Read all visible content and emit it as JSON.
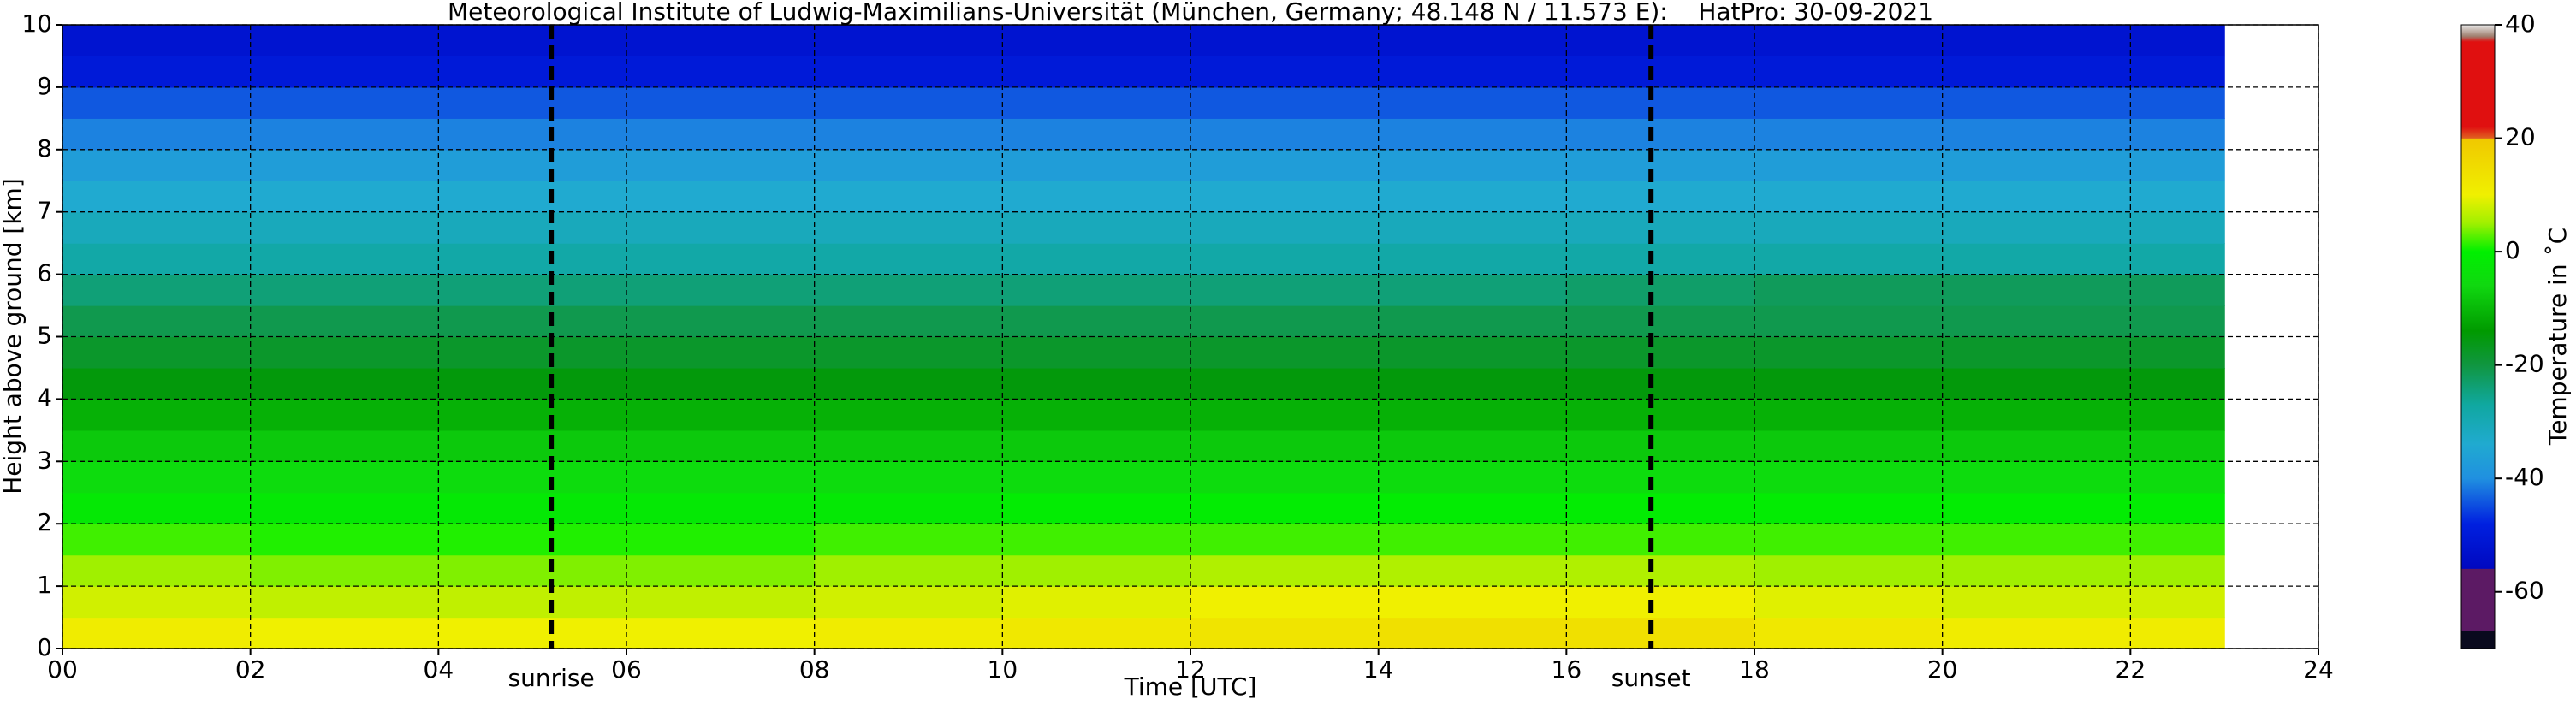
{
  "chart_data": {
    "type": "heatmap",
    "title": "Meteorological Institute of Ludwig-Maximilians-Universität (München, Germany; 48.148 N / 11.573 E):    HatPro: 30-09-2021",
    "xlabel": "Time [UTC]",
    "ylabel": "Height above ground [km]",
    "colorbar_label": "Temperature in ˚C",
    "xlim": [
      0,
      24
    ],
    "ylim": [
      0,
      10
    ],
    "xticks": [
      {
        "value": 0,
        "label": "00"
      },
      {
        "value": 2,
        "label": "02"
      },
      {
        "value": 4,
        "label": "04"
      },
      {
        "value": 6,
        "label": "06"
      },
      {
        "value": 8,
        "label": "08"
      },
      10,
      12,
      14,
      16,
      18,
      20,
      22,
      24
    ],
    "yticks": [
      0,
      1,
      2,
      3,
      4,
      5,
      6,
      7,
      8,
      9,
      10
    ],
    "grid": true,
    "clim": [
      -70,
      40
    ],
    "cticks": [
      -60,
      -40,
      -20,
      0,
      20,
      40
    ],
    "colormap": [
      {
        "value": -70,
        "color": "#0a0a1e"
      },
      {
        "value": -67,
        "color": "#0a0a1e"
      },
      {
        "value": -66.9,
        "color": "#5c1a64"
      },
      {
        "value": -56,
        "color": "#5c1a64"
      },
      {
        "value": -55.9,
        "color": "#0008c0"
      },
      {
        "value": -48,
        "color": "#0020e0"
      },
      {
        "value": -40,
        "color": "#2090e0"
      },
      {
        "value": -34,
        "color": "#20aad0"
      },
      {
        "value": -27,
        "color": "#10a8a0"
      },
      {
        "value": -20,
        "color": "#109640"
      },
      {
        "value": -14,
        "color": "#009a00"
      },
      {
        "value": -6,
        "color": "#10d810"
      },
      {
        "value": 0,
        "color": "#00f000"
      },
      {
        "value": 5,
        "color": "#a0f000"
      },
      {
        "value": 10,
        "color": "#f0f000"
      },
      {
        "value": 19.9,
        "color": "#f0c800"
      },
      {
        "value": 20,
        "color": "#e06020"
      },
      {
        "value": 22,
        "color": "#e01010"
      },
      {
        "value": 37,
        "color": "#e01010"
      },
      {
        "value": 38,
        "color": "#a08070"
      },
      {
        "value": 40,
        "color": "#e8e8e8"
      }
    ],
    "x_bins": [
      0,
      2,
      4,
      6,
      8,
      10,
      12,
      14,
      16,
      18,
      20,
      22,
      23
    ],
    "y_bins": [
      0,
      0.5,
      1,
      1.5,
      2,
      2.5,
      3,
      3.5,
      4,
      4.5,
      5,
      5.5,
      6,
      6.5,
      7,
      7.5,
      8,
      8.5,
      9,
      9.5,
      10
    ],
    "values": [
      [
        11,
        10,
        10,
        10,
        11,
        12,
        13,
        14,
        14,
        12,
        11,
        11
      ],
      [
        8,
        7,
        7,
        7,
        8,
        9,
        10,
        10,
        10,
        9,
        8,
        8
      ],
      [
        5,
        4,
        4,
        4,
        5,
        5,
        6,
        6,
        6,
        5,
        5,
        5
      ],
      [
        2,
        1,
        1,
        1,
        2,
        2,
        2,
        2,
        2,
        2,
        2,
        2
      ],
      [
        -2,
        -2,
        -2,
        -2,
        -2,
        -1,
        -1,
        -1,
        -1,
        -1,
        -1,
        -1
      ],
      [
        -5,
        -5,
        -5,
        -5,
        -5,
        -5,
        -5,
        -5,
        -5,
        -5,
        -5,
        -5
      ],
      [
        -8,
        -8,
        -8,
        -8,
        -8,
        -8,
        -8,
        -8,
        -8,
        -8,
        -8,
        -8
      ],
      [
        -11,
        -11,
        -11,
        -11,
        -11,
        -11,
        -11,
        -11,
        -11,
        -11,
        -11,
        -11
      ],
      [
        -15,
        -15,
        -15,
        -15,
        -15,
        -15,
        -15,
        -15,
        -15,
        -15,
        -15,
        -15
      ],
      [
        -18,
        -18,
        -18,
        -18,
        -18,
        -18,
        -18,
        -18,
        -18,
        -18,
        -18,
        -18
      ],
      [
        -21,
        -21,
        -21,
        -21,
        -21,
        -21,
        -21,
        -21,
        -21,
        -21,
        -21,
        -21
      ],
      [
        -24,
        -24,
        -24,
        -24,
        -24,
        -24,
        -24,
        -24,
        -23,
        -22,
        -22,
        -22
      ],
      [
        -28,
        -28,
        -28,
        -28,
        -28,
        -28,
        -28,
        -28,
        -28,
        -28,
        -28,
        -28
      ],
      [
        -31,
        -31,
        -31,
        -31,
        -31,
        -31,
        -31,
        -31,
        -31,
        -31,
        -31,
        -31
      ],
      [
        -34,
        -34,
        -34,
        -34,
        -34,
        -34,
        -34,
        -34,
        -34,
        -34,
        -34,
        -34
      ],
      [
        -37,
        -37,
        -37,
        -37,
        -37,
        -37,
        -37,
        -37,
        -37,
        -37,
        -37,
        -37
      ],
      [
        -41,
        -41,
        -41,
        -41,
        -41,
        -41,
        -41,
        -41,
        -41,
        -41,
        -41,
        -41
      ],
      [
        -44,
        -44,
        -44,
        -44,
        -44,
        -44,
        -44,
        -44,
        -44,
        -44,
        -44,
        -44
      ],
      [
        -50,
        -50,
        -50,
        -50,
        -50,
        -50,
        -50,
        -50,
        -50,
        -50,
        -50,
        -50
      ],
      [
        -52,
        -52,
        -52,
        -52,
        -52,
        -52,
        -52,
        -52,
        -52,
        -52,
        -52,
        -52
      ]
    ],
    "annotations": [
      {
        "text": "sunrise",
        "x": 5.2
      },
      {
        "text": "sunset",
        "x": 16.9
      }
    ]
  }
}
